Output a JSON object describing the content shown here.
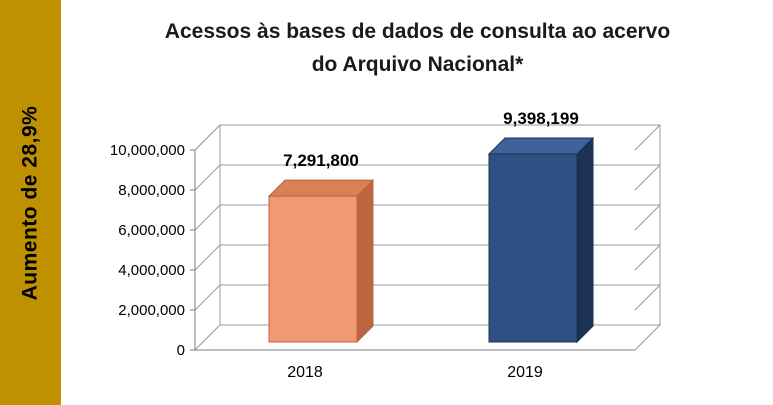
{
  "sidebar": {
    "label": "Aumento de  28,9%",
    "color": "#BF9000",
    "text_color": "#000000"
  },
  "title": {
    "line1": "Acessos às bases de dados de consulta ao acervo",
    "line2": "do Arquivo Nacional*"
  },
  "chart_data": {
    "type": "bar",
    "effect": "3d",
    "title": "Acessos às bases de dados de consulta ao acervo do Arquivo Nacional*",
    "categories": [
      "2018",
      "2019"
    ],
    "values": [
      7291800,
      9398199
    ],
    "value_labels": [
      "7,291,800",
      "9,398,199"
    ],
    "xlabel": "",
    "ylabel": "",
    "ylim": [
      0,
      10000000
    ],
    "yticks": [
      0,
      2000000,
      4000000,
      6000000,
      8000000,
      10000000
    ],
    "ytick_labels": [
      "0",
      "2,000,000",
      "4,000,000",
      "6,000,000",
      "8,000,000",
      "10,000,000"
    ],
    "grid": true,
    "legend": "none",
    "bar_colors": [
      {
        "front": "#EF9A72",
        "side": "#BD6440",
        "top": "#DA8055"
      },
      {
        "front": "#2E5184",
        "side": "#1B3254",
        "top": "#3E639B"
      }
    ],
    "grid_color": "#9B9B9B",
    "axis_color": "#7F7F7F",
    "wall_color": "#FFFFFF"
  }
}
